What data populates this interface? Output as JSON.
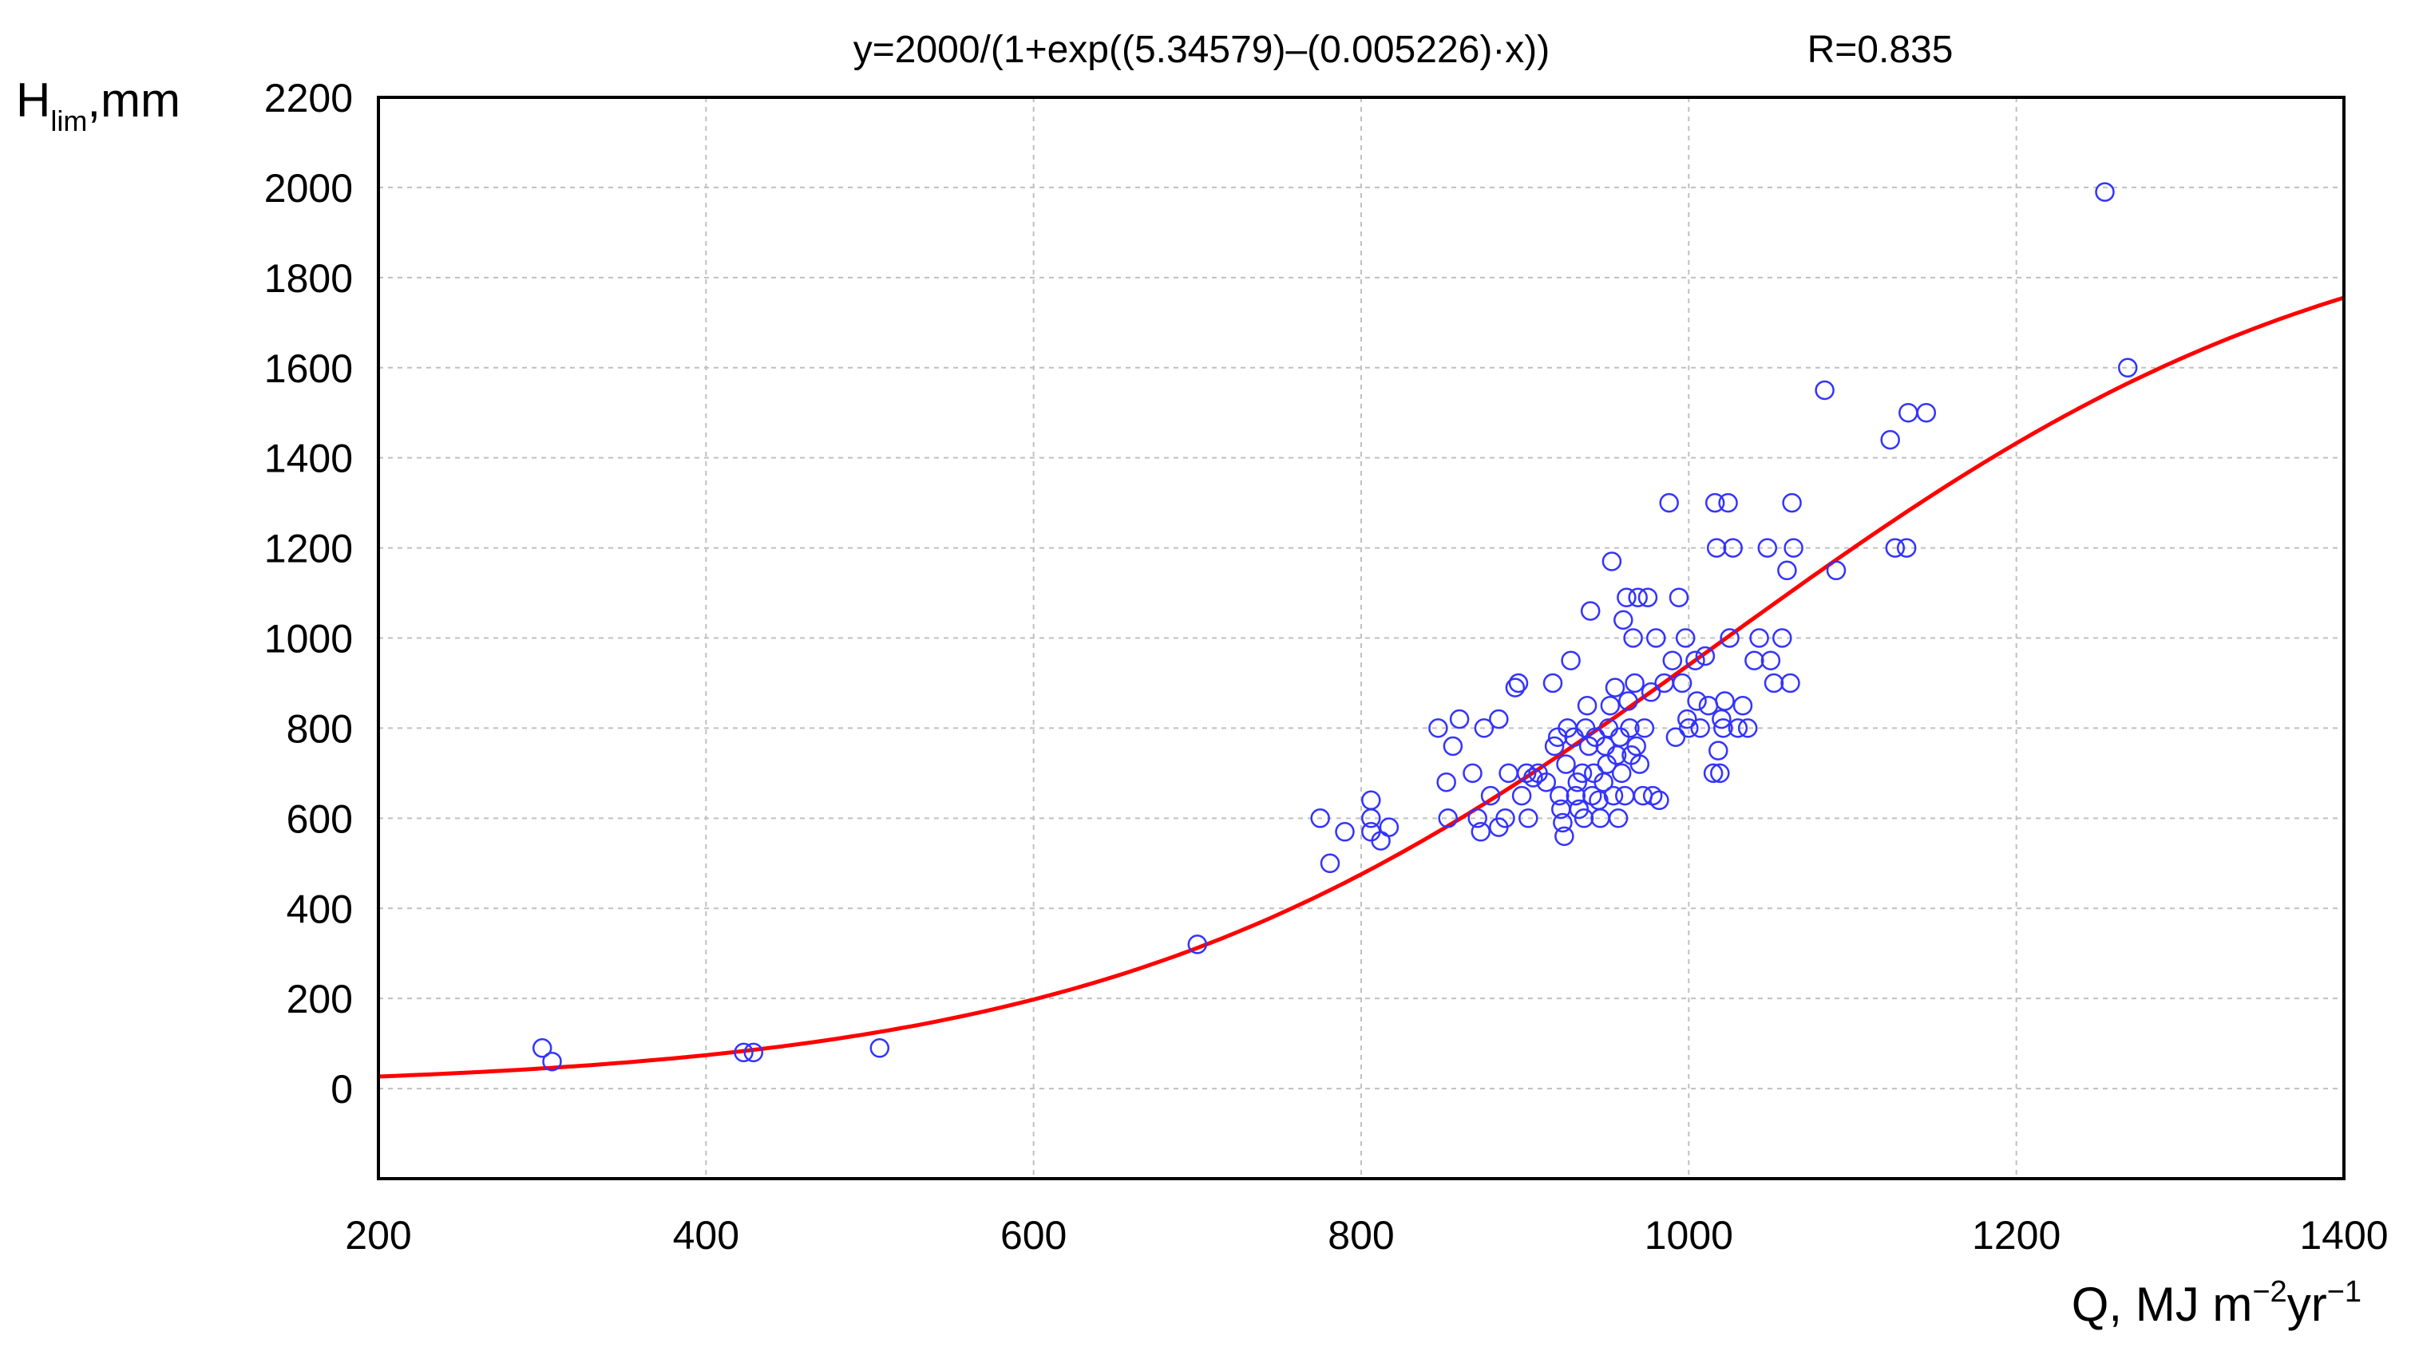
{
  "chart_data": {
    "type": "scatter",
    "title": "y=2000/(1+exp((5.34579)–(0.005226)·x))",
    "annotation": "R=0.835",
    "ylabel": {
      "main": "H",
      "sub": "lim",
      "rest": ",mm"
    },
    "xlabel": {
      "pre": "Q, MJ m",
      "sup1": "−2",
      "mid": "yr",
      "sup2": "−1"
    },
    "xlim": [
      200,
      1400
    ],
    "ylim": [
      -200,
      2200
    ],
    "x_ticks": [
      200,
      400,
      600,
      800,
      1000,
      1200,
      1400
    ],
    "y_ticks": [
      0,
      200,
      400,
      600,
      800,
      1000,
      1200,
      1400,
      1600,
      1800,
      2000,
      2200
    ],
    "grid": true,
    "colors": {
      "points": "#3333ff",
      "curve": "#ff0000",
      "grid": "#c0c0c0"
    },
    "fit": {
      "a": 2000,
      "b": 5.34579,
      "c": 0.005226
    },
    "series": [
      {
        "type": "points",
        "points": [
          [
            300,
            90
          ],
          [
            306,
            60
          ],
          [
            423,
            80
          ],
          [
            429,
            80
          ],
          [
            506,
            90
          ],
          [
            700,
            320
          ],
          [
            775,
            600
          ],
          [
            781,
            500
          ],
          [
            790,
            570
          ],
          [
            806,
            640
          ],
          [
            806,
            600
          ],
          [
            806,
            570
          ],
          [
            812,
            550
          ],
          [
            817,
            580
          ],
          [
            847,
            800
          ],
          [
            852,
            680
          ],
          [
            853,
            600
          ],
          [
            856,
            760
          ],
          [
            860,
            820
          ],
          [
            868,
            700
          ],
          [
            871,
            600
          ],
          [
            873,
            570
          ],
          [
            875,
            800
          ],
          [
            879,
            650
          ],
          [
            884,
            820
          ],
          [
            884,
            580
          ],
          [
            888,
            600
          ],
          [
            890,
            700
          ],
          [
            894,
            890
          ],
          [
            896,
            900
          ],
          [
            898,
            650
          ],
          [
            901,
            700
          ],
          [
            902,
            600
          ],
          [
            905,
            690
          ],
          [
            908,
            700
          ],
          [
            913,
            680
          ],
          [
            917,
            900
          ],
          [
            918,
            760
          ],
          [
            920,
            780
          ],
          [
            921,
            650
          ],
          [
            922,
            620
          ],
          [
            923,
            590
          ],
          [
            924,
            560
          ],
          [
            925,
            720
          ],
          [
            926,
            800
          ],
          [
            928,
            950
          ],
          [
            930,
            780
          ],
          [
            931,
            650
          ],
          [
            932,
            680
          ],
          [
            933,
            620
          ],
          [
            935,
            700
          ],
          [
            936,
            600
          ],
          [
            937,
            800
          ],
          [
            938,
            850
          ],
          [
            939,
            760
          ],
          [
            940,
            1060
          ],
          [
            941,
            650
          ],
          [
            942,
            700
          ],
          [
            943,
            780
          ],
          [
            945,
            640
          ],
          [
            946,
            600
          ],
          [
            948,
            680
          ],
          [
            949,
            760
          ],
          [
            950,
            720
          ],
          [
            951,
            800
          ],
          [
            952,
            850
          ],
          [
            953,
            1170
          ],
          [
            954,
            650
          ],
          [
            955,
            890
          ],
          [
            956,
            740
          ],
          [
            957,
            600
          ],
          [
            958,
            780
          ],
          [
            959,
            700
          ],
          [
            960,
            1040
          ],
          [
            961,
            650
          ],
          [
            962,
            1090
          ],
          [
            963,
            860
          ],
          [
            964,
            800
          ],
          [
            965,
            740
          ],
          [
            966,
            1000
          ],
          [
            967,
            900
          ],
          [
            968,
            760
          ],
          [
            969,
            1090
          ],
          [
            970,
            720
          ],
          [
            972,
            650
          ],
          [
            973,
            800
          ],
          [
            975,
            1090
          ],
          [
            977,
            880
          ],
          [
            978,
            650
          ],
          [
            980,
            1000
          ],
          [
            982,
            640
          ],
          [
            985,
            900
          ],
          [
            988,
            1300
          ],
          [
            990,
            950
          ],
          [
            992,
            780
          ],
          [
            994,
            1090
          ],
          [
            996,
            900
          ],
          [
            998,
            1000
          ],
          [
            999,
            820
          ],
          [
            1000,
            800
          ],
          [
            1004,
            950
          ],
          [
            1005,
            860
          ],
          [
            1007,
            800
          ],
          [
            1010,
            960
          ],
          [
            1012,
            850
          ],
          [
            1015,
            700
          ],
          [
            1016,
            1300
          ],
          [
            1017,
            1200
          ],
          [
            1018,
            750
          ],
          [
            1019,
            700
          ],
          [
            1020,
            820
          ],
          [
            1021,
            800
          ],
          [
            1022,
            860
          ],
          [
            1024,
            1300
          ],
          [
            1025,
            1000
          ],
          [
            1027,
            1200
          ],
          [
            1030,
            800
          ],
          [
            1033,
            850
          ],
          [
            1036,
            800
          ],
          [
            1040,
            950
          ],
          [
            1043,
            1000
          ],
          [
            1048,
            1200
          ],
          [
            1050,
            950
          ],
          [
            1052,
            900
          ],
          [
            1057,
            1000
          ],
          [
            1060,
            1150
          ],
          [
            1062,
            900
          ],
          [
            1063,
            1300
          ],
          [
            1064,
            1200
          ],
          [
            1083,
            1550
          ],
          [
            1090,
            1150
          ],
          [
            1123,
            1440
          ],
          [
            1126,
            1200
          ],
          [
            1133,
            1200
          ],
          [
            1134,
            1500
          ],
          [
            1145,
            1500
          ],
          [
            1254,
            1990
          ],
          [
            1268,
            1600
          ]
        ]
      },
      {
        "type": "curve",
        "equation": "y=2000/(1+exp((5.34579)–(0.005226)·x))"
      }
    ]
  }
}
